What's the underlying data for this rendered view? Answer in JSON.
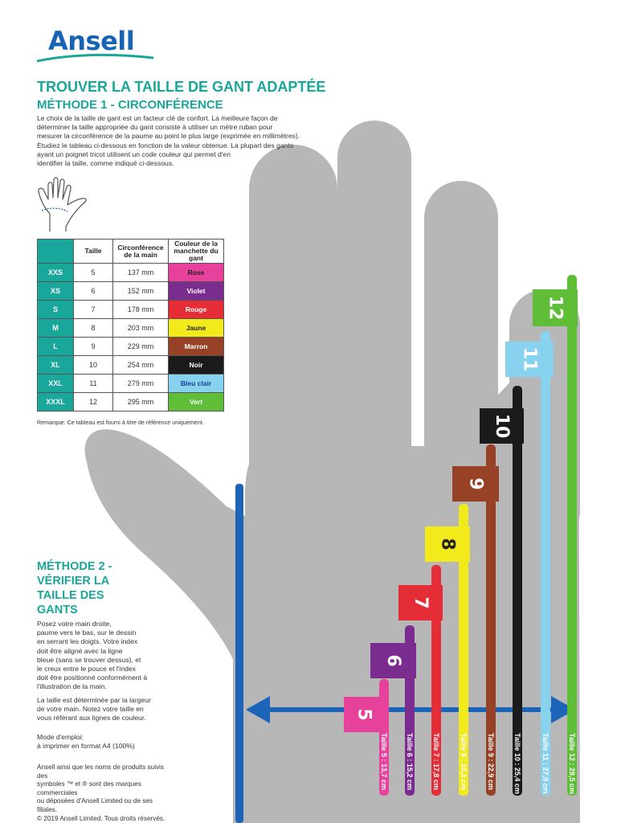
{
  "logo": {
    "text": "Ansell",
    "color": "#1763b5"
  },
  "title": "TROUVER LA TAILLE DE GANT ADAPTÉE",
  "method1": {
    "title": "MÉTHODE 1 - CIRCONFÉRENCE",
    "intro_lines": [
      "Le choix de la taille de gant est un facteur clé de confort. La meilleure façon de",
      "déterminer la taille appropriée du gant consiste à utiliser un mètre ruban pour",
      "mesurer la circonférence de la paume au point le plus large (exprimée en millimètres).",
      "Étudiez le tableau ci-dessous en fonction de la valeur obtenue. La plupart des gants",
      "ayant un poignet tricot utilisent un code couleur qui permet d'en",
      "identifier la taille, comme indiqué ci-dessous."
    ],
    "table": {
      "headers": [
        "",
        "Taille",
        "Circonférence de la main",
        "Couleur de la manchette du gant"
      ],
      "rows": [
        {
          "size": "XXS",
          "num": "5",
          "circ": "137 mm",
          "color_name": "Rose",
          "color": "#e6419b",
          "text_color": "#222222"
        },
        {
          "size": "XS",
          "num": "6",
          "circ": "152 mm",
          "color_name": "Violet",
          "color": "#7b2c8f",
          "text_color": "#ffffff"
        },
        {
          "size": "S",
          "num": "7",
          "circ": "178 mm",
          "color_name": "Rouge",
          "color": "#e52d38",
          "text_color": "#ffffff"
        },
        {
          "size": "M",
          "num": "8",
          "circ": "203 mm",
          "color_name": "Jaune",
          "color": "#f2ea1b",
          "text_color": "#222222"
        },
        {
          "size": "L",
          "num": "9",
          "circ": "229 mm",
          "color_name": "Marron",
          "color": "#974127",
          "text_color": "#ffffff"
        },
        {
          "size": "XL",
          "num": "10",
          "circ": "254 mm",
          "color_name": "Noir",
          "color": "#1b1b1b",
          "text_color": "#ffffff"
        },
        {
          "size": "XXL",
          "num": "11",
          "circ": "279 mm",
          "color_name": "Bleu clair",
          "color": "#87d2ef",
          "text_color": "#1a3b8c"
        },
        {
          "size": "XXXL",
          "num": "12",
          "circ": "295 mm",
          "color_name": "Vert",
          "color": "#5fbd38",
          "text_color": "#ffffff"
        }
      ]
    },
    "note": "Remarque: Ce tableau est fourni à titre de référence uniquement."
  },
  "method2": {
    "title_lines": [
      "MÉTHODE 2 -",
      "VÉRIFIER LA",
      "TAILLE DES",
      "GANTS"
    ],
    "para1_lines": [
      "Posez votre main droite,",
      "paume vers le bas, sur le dessin",
      "en serrant les doigts. Votre index",
      "doit être aligné avec la ligne",
      "bleue (sans se trouver dessus), et",
      "le creux entre le pouce et l'index",
      "doit être positionné conformément à",
      "l'illustration de la main."
    ],
    "para2_lines": [
      "La taille est déterminée par la largeur",
      "de votre main. Notez votre taille en",
      "vous référant aux lignes de couleur."
    ],
    "para3_lines": [
      "Mode d'emploi:",
      "à imprimer en format A4 (100%)"
    ],
    "para4_lines": [
      "Ansell ainsi que les noms de produits suivis des",
      "symboles ™ et ® sont des marques commerciales",
      "ou déposées d'Ansell Limited ou de ses filiales.",
      "© 2019 Ansell Limited. Tous droits réservés."
    ]
  },
  "hand_color": "#b7b7b7",
  "reference_line_color": "#1c64b8",
  "size_bars": [
    {
      "num": "5",
      "label": "Taille 5 : 13,7 cm",
      "color": "#e6419b"
    },
    {
      "num": "6",
      "label": "Taille 6 : 15,2 cm",
      "color": "#7b2c8f"
    },
    {
      "num": "7",
      "label": "Taille 7 : 17,8 cm",
      "color": "#e52d38"
    },
    {
      "num": "8",
      "label": "Taille 8 : 20,3 cm",
      "color": "#f2ea1b"
    },
    {
      "num": "9",
      "label": "Taille 9 : 22,9 cm",
      "color": "#974127"
    },
    {
      "num": "10",
      "label": "Taille 10 : 25,4 cm",
      "color": "#1b1b1b"
    },
    {
      "num": "11",
      "label": "Taille 11 : 27,9 cm",
      "color": "#87d2ef"
    },
    {
      "num": "12",
      "label": "Taille 12 : 29,5 cm",
      "color": "#5fbd38"
    }
  ]
}
